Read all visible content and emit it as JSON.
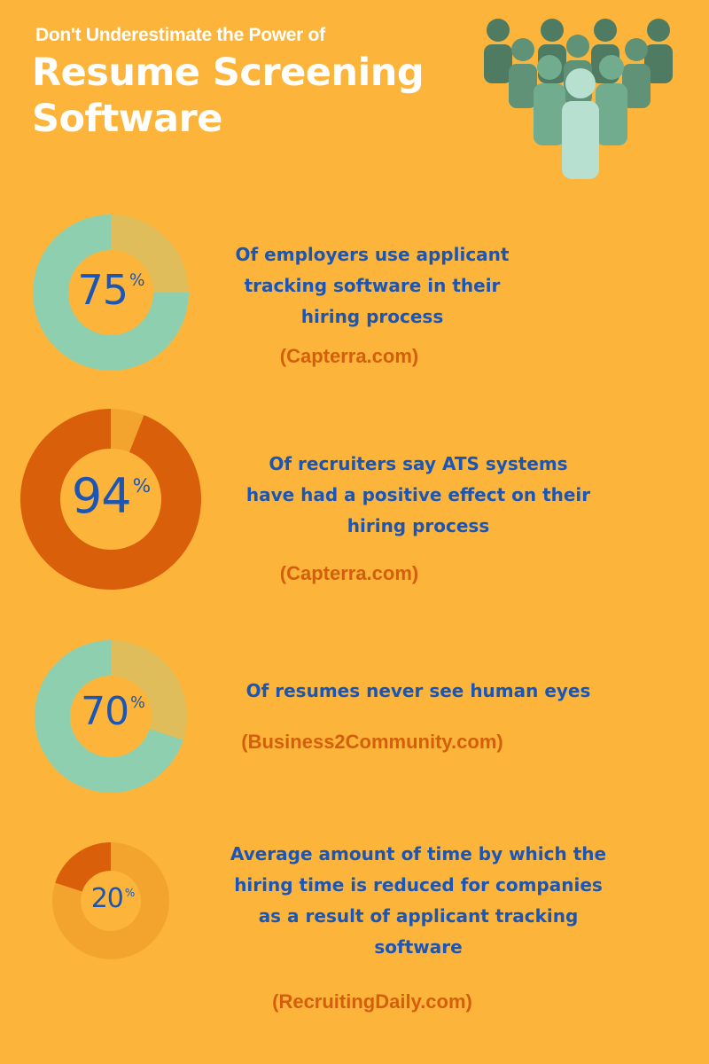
{
  "header": {
    "subtitle": "Don't Underestimate the Power of",
    "title_line1": "Resume Screening",
    "title_line2": "Software"
  },
  "colors": {
    "background": "#fcb53a",
    "teal": "#8ecfaf",
    "khaki": "#e0bd5b",
    "orange_dark": "#d95f0b",
    "orange_light": "#f3a42e",
    "text_blue": "#1b55b5",
    "source_orange": "#d35f0d"
  },
  "stats": [
    {
      "value": 75,
      "value_label": "75",
      "unit": "%",
      "fill_color": "#8ecfaf",
      "rest_color": "#e0bd5b",
      "description": [
        "Of employers use applicant",
        "tracking software in their",
        "hiring process"
      ],
      "source": "(Capterra.com)"
    },
    {
      "value": 94,
      "value_label": "94",
      "unit": "%",
      "fill_color": "#d95f0b",
      "rest_color": "#f3a42e",
      "description": [
        "Of recruiters say ATS systems",
        "have had a positive effect on their",
        "hiring process"
      ],
      "source": "(Capterra.com)"
    },
    {
      "value": 70,
      "value_label": "70",
      "unit": "%",
      "fill_color": "#8ecfaf",
      "rest_color": "#e0bd5b",
      "description": [
        "Of resumes never see human eyes"
      ],
      "source": "(Business2Community.com)"
    },
    {
      "value": 20,
      "value_label": "20",
      "unit": "%",
      "fill_color": "#d95f0b",
      "rest_color": "#f3a42e",
      "description": [
        "Average amount of time by which the",
        "hiring time is reduced for companies",
        "as a result of applicant tracking",
        "software"
      ],
      "source": "(RecruitingDaily.com)"
    }
  ],
  "illustration": {
    "icon": "crowd-of-people-icon"
  }
}
